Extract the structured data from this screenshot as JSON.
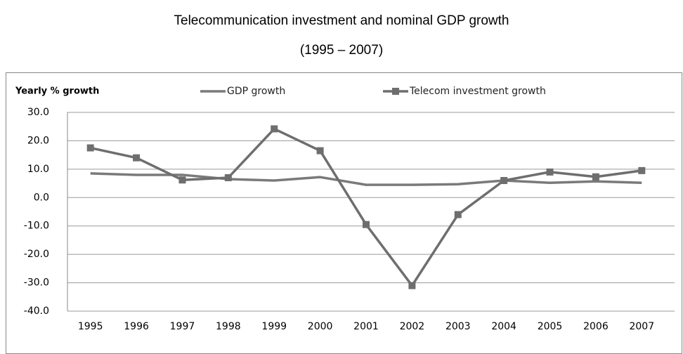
{
  "chart_data": {
    "type": "line",
    "title": "Telecommunication investment and nominal GDP growth",
    "subtitle": "(1995 – 2007)",
    "y_label": "Yearly % growth",
    "categories": [
      "1995",
      "1996",
      "1997",
      "1998",
      "1999",
      "2000",
      "2001",
      "2002",
      "2003",
      "2004",
      "2005",
      "2006",
      "2007"
    ],
    "series": [
      {
        "name": "GDP growth",
        "color": "#7a7a7a",
        "marker": "none",
        "values": [
          8.5,
          8.0,
          8.0,
          6.5,
          6.0,
          7.2,
          4.5,
          4.5,
          4.7,
          6.0,
          5.2,
          5.7,
          5.2
        ]
      },
      {
        "name": "Telecom investment growth",
        "color": "#6e6e6e",
        "marker": "square",
        "values": [
          17.5,
          14.0,
          6.2,
          7.0,
          24.2,
          16.5,
          -9.5,
          -31.0,
          -6.0,
          6.0,
          9.0,
          7.3,
          9.5
        ]
      }
    ],
    "ylim": [
      -40,
      30
    ],
    "yticks": [
      {
        "value": 30,
        "label": "30.0"
      },
      {
        "value": 20,
        "label": "20.0"
      },
      {
        "value": 10,
        "label": "10.0"
      },
      {
        "value": 0,
        "label": "0.0"
      },
      {
        "value": -10,
        "label": "-10.0"
      },
      {
        "value": -20,
        "label": "-20.0"
      },
      {
        "value": -30,
        "label": "-30.0"
      },
      {
        "value": -40,
        "label": "-40.0"
      }
    ],
    "grid": true,
    "legend": "top"
  }
}
